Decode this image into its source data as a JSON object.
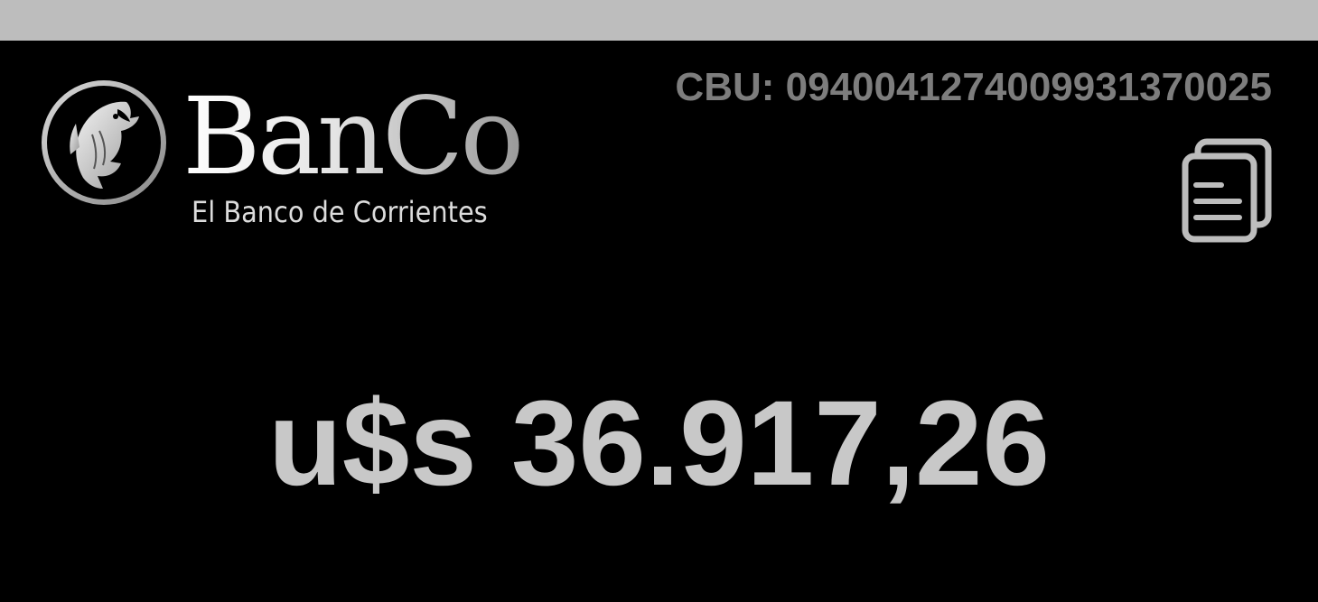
{
  "colors": {
    "top_strip": "#bdbdbd",
    "background": "#000000",
    "cbu_text": "#7d7d7d",
    "balance_text": "#c8c8c8",
    "icon_stroke": "#bdbdbd"
  },
  "logo": {
    "icon": "fish-emblem-icon",
    "wordmark": "BanCo",
    "tagline": "El Banco de Corrientes"
  },
  "account": {
    "cbu_label": "CBU:",
    "cbu_number": "0940041274009931370025",
    "copy_icon": "copy-document-icon"
  },
  "balance": {
    "currency": "u$s",
    "amount": "36.917,26"
  }
}
